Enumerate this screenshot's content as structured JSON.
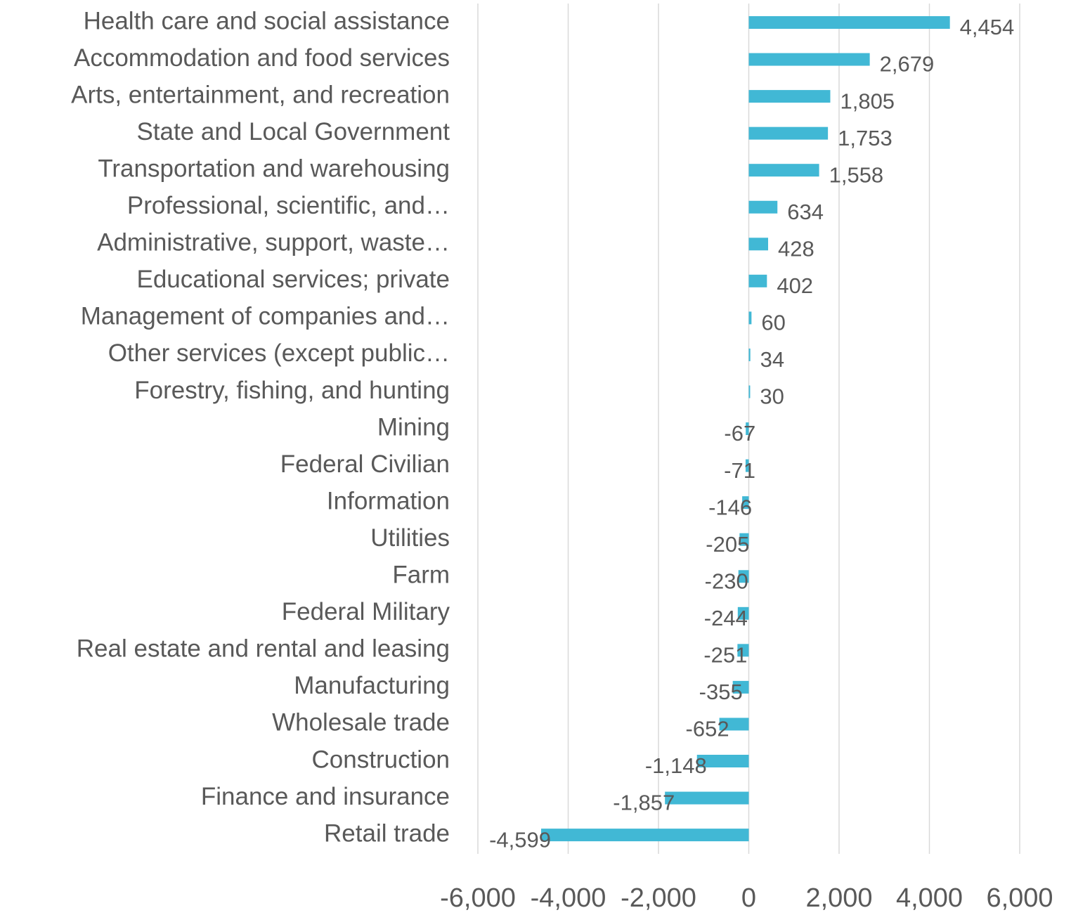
{
  "chart_data": {
    "type": "bar",
    "orientation": "horizontal",
    "color": "#41b8d5",
    "grid": true,
    "categories": [
      "Health care and social assistance",
      "Accommodation and food services",
      "Arts, entertainment, and recreation",
      "State and Local Government",
      "Transportation and warehousing",
      "Professional, scientific, and…",
      "Administrative, support, waste…",
      "Educational services; private",
      "Management of companies and…",
      "Other services (except public…",
      "Forestry, fishing, and hunting",
      "Mining",
      "Federal Civilian",
      "Information",
      "Utilities",
      "Farm",
      "Federal Military",
      "Real estate and rental and leasing",
      "Manufacturing",
      "Wholesale trade",
      "Construction",
      "Finance and insurance",
      "Retail trade"
    ],
    "values": [
      4454,
      2679,
      1805,
      1753,
      1558,
      634,
      428,
      402,
      60,
      34,
      30,
      -67,
      -71,
      -146,
      -205,
      -230,
      -244,
      -251,
      -355,
      -652,
      -1148,
      -1857,
      -4599
    ],
    "value_labels": [
      "4,454",
      "2,679",
      "1,805",
      "1,753",
      "1,558",
      "634",
      "428",
      "402",
      "60",
      "34",
      "30",
      "-67",
      "-71",
      "-146",
      "-205",
      "-230",
      "-244",
      "-251",
      "-355",
      "-652",
      "-1,148",
      "-1,857",
      "-4,599"
    ],
    "xlim": [
      -6000,
      6000
    ],
    "xticks": [
      {
        "value": -6000,
        "label": "-6,000"
      },
      {
        "value": -4000,
        "label": "-4,000"
      },
      {
        "value": -2000,
        "label": "-2,000"
      },
      0,
      {
        "value": 2000,
        "label": "2,000"
      },
      {
        "value": 4000,
        "label": "4,000"
      },
      {
        "value": 6000,
        "label": "6,000"
      }
    ]
  }
}
